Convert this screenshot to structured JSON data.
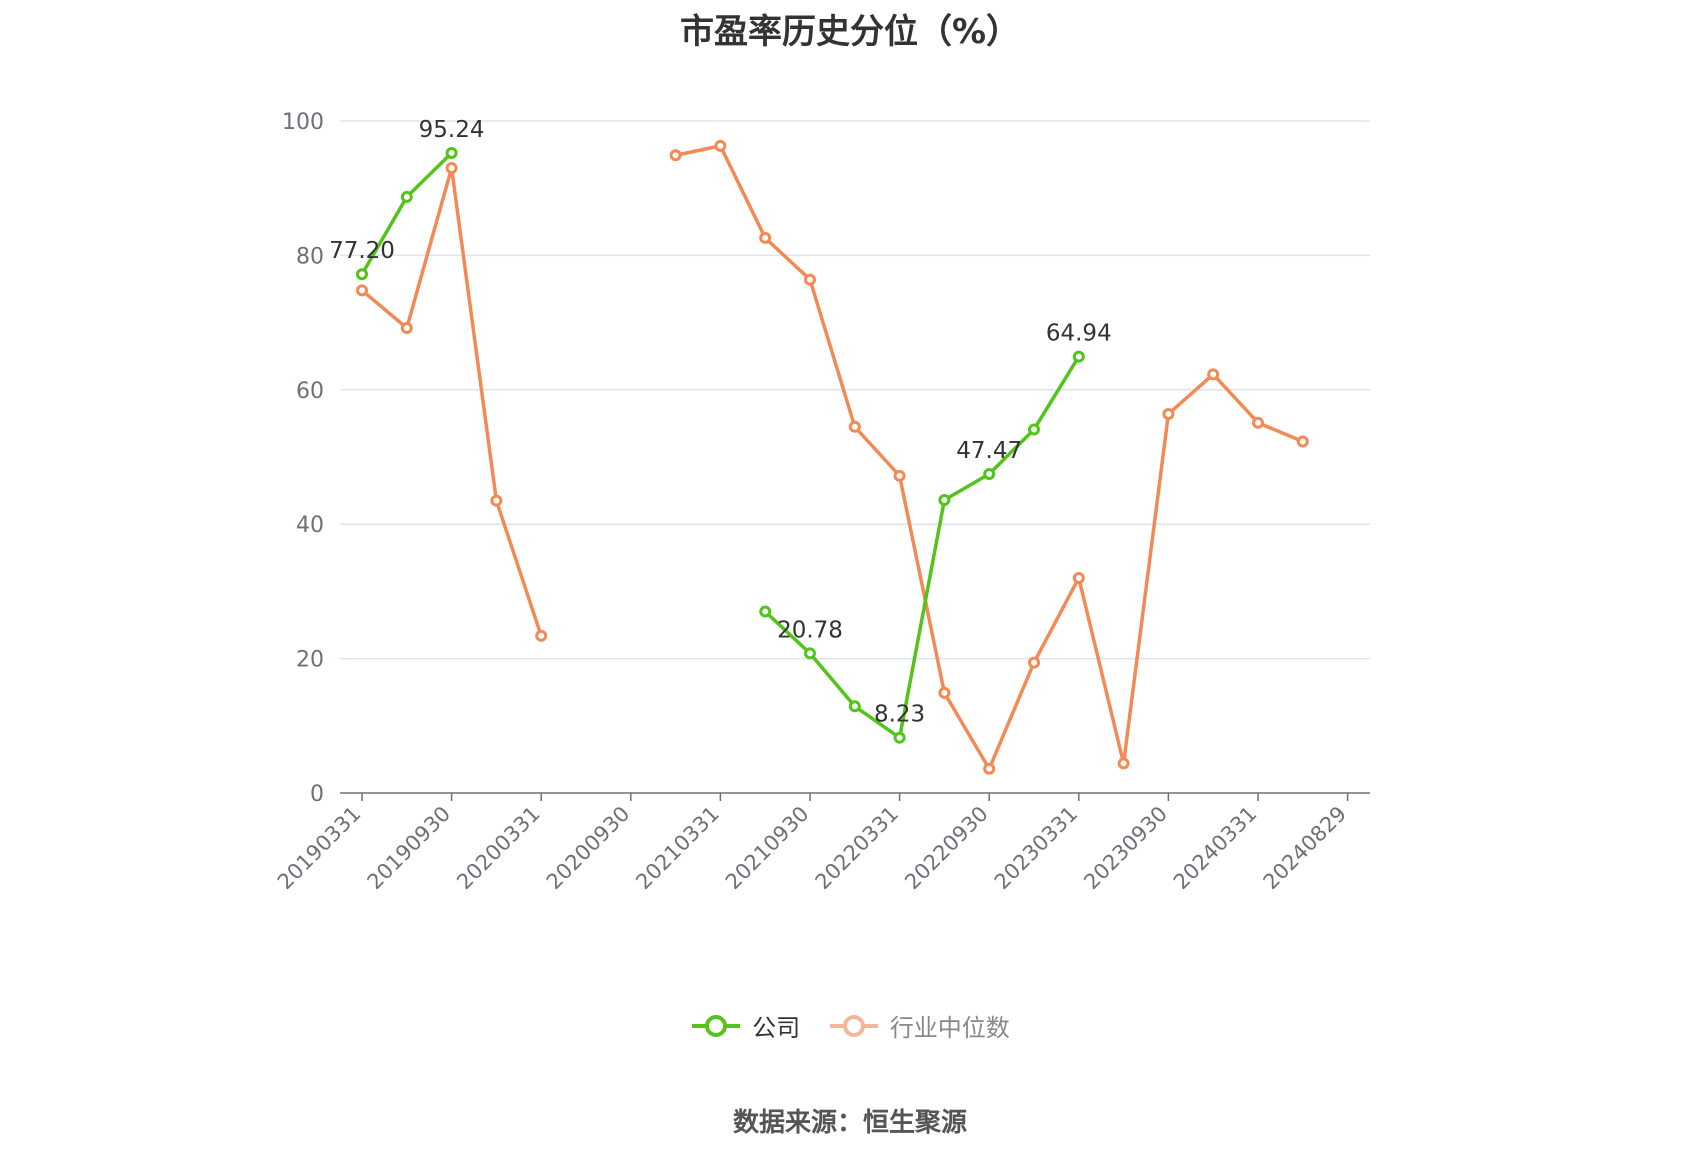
{
  "title": "市盈率历史分位（%）",
  "source": "数据来源：恒生聚源",
  "colors": {
    "company": "#52c41a",
    "industry": "#f28a55",
    "industry_legend": "#f6b49a",
    "grid": "#e0e3ef",
    "axis": "#6e7079"
  },
  "legend": [
    {
      "name": "公司",
      "icon": "circle-line-icon"
    },
    {
      "name": "行业中位数",
      "icon": "circle-line-icon"
    }
  ],
  "chart_data": {
    "type": "line",
    "title": "市盈率历史分位（%）",
    "ylim": [
      0,
      100
    ],
    "yticks": [
      0,
      20,
      40,
      60,
      80,
      100
    ],
    "xtick_labels": [
      "20190331",
      "20190930",
      "20200331",
      "20200930",
      "20210331",
      "20210930",
      "20220331",
      "20220930",
      "20230331",
      "20230930",
      "20240331",
      "20240829"
    ],
    "grid": true,
    "legend_position": "bottom",
    "n_points": 22,
    "series": [
      {
        "name": "公司",
        "values": [
          77.2,
          88.7,
          95.24,
          null,
          null,
          null,
          null,
          null,
          null,
          27.0,
          20.78,
          12.9,
          8.23,
          43.6,
          47.47,
          54.1,
          64.94,
          null,
          null,
          null,
          null,
          null
        ],
        "labels": {
          "0": "77.20",
          "2": "95.24",
          "10": "20.78",
          "12": "8.23",
          "14": "47.47",
          "16": "64.94"
        }
      },
      {
        "name": "行业中位数",
        "values": [
          74.8,
          69.2,
          93.0,
          43.5,
          23.4,
          null,
          null,
          94.9,
          96.3,
          82.6,
          76.4,
          54.5,
          47.2,
          14.9,
          3.6,
          19.4,
          32.0,
          4.4,
          56.4,
          62.3,
          55.1,
          52.3
        ]
      }
    ]
  }
}
